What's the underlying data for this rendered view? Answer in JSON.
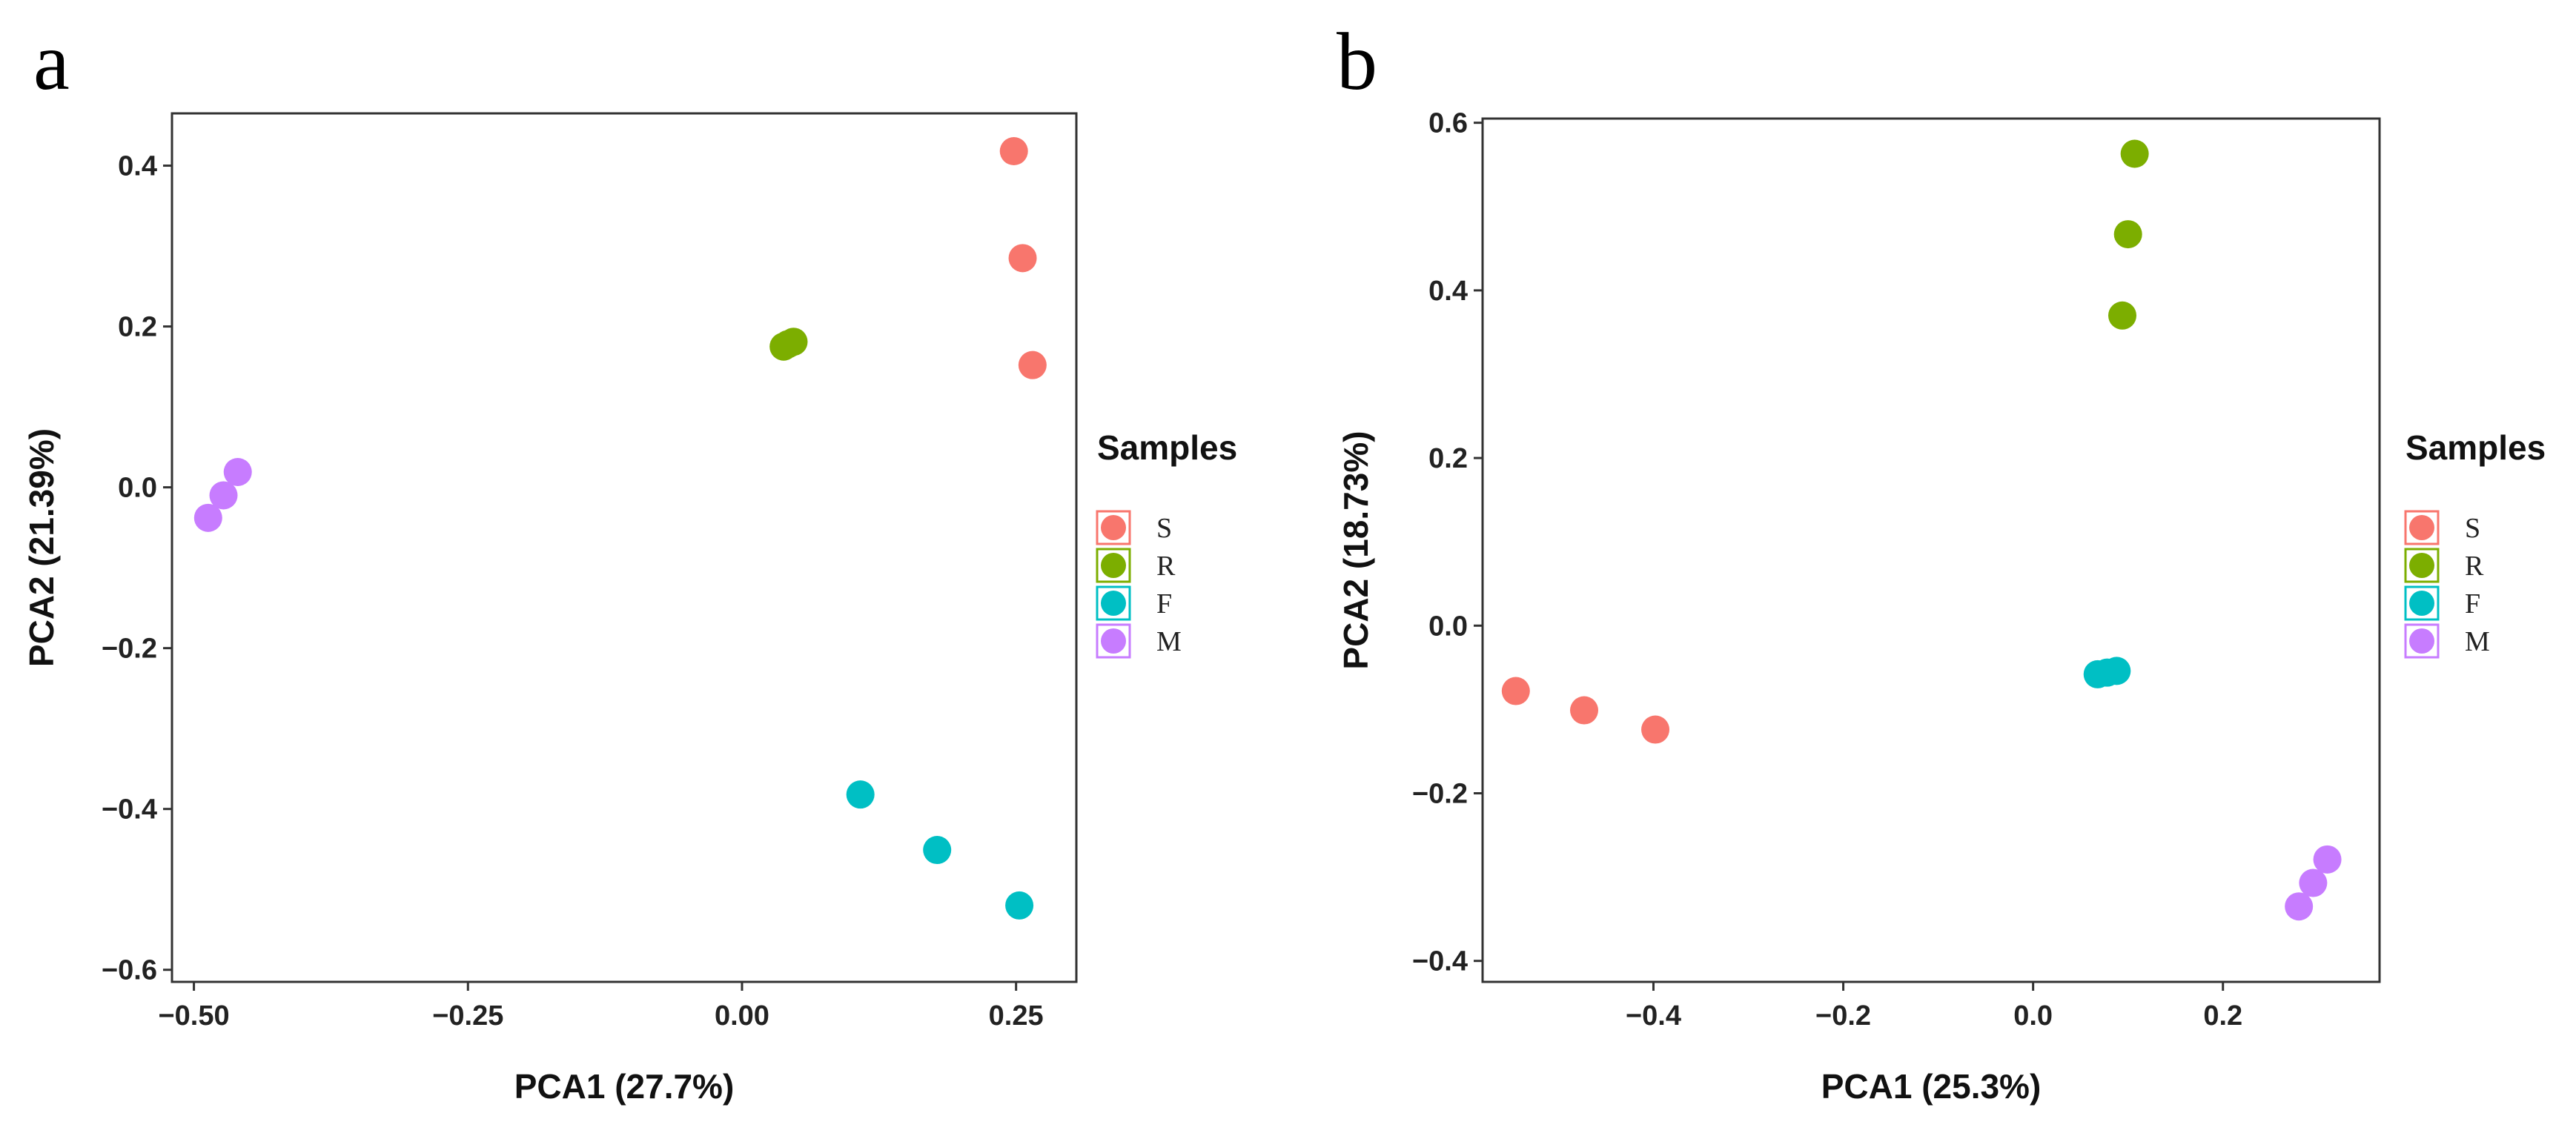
{
  "chart_data": [
    {
      "type": "scatter",
      "panel_label": "a",
      "xlabel": "PCA1 (27.7%)",
      "ylabel": "PCA2 (21.39%)",
      "xlim": [
        -0.52,
        0.305
      ],
      "ylim": [
        -0.615,
        0.465
      ],
      "xticks": [
        -0.5,
        -0.25,
        0.0,
        0.25
      ],
      "xtick_labels": [
        "−0.50",
        "−0.25",
        "0.00",
        "0.25"
      ],
      "yticks": [
        0.4,
        0.2,
        0.0,
        -0.2,
        -0.4,
        -0.6
      ],
      "ytick_labels": [
        "0.4",
        "0.2",
        "0.0",
        "−0.2",
        "−0.4",
        "−0.6"
      ],
      "legend": {
        "title": "Samples",
        "position": "right"
      },
      "series": [
        {
          "name": "S",
          "color": "#F8766D",
          "points": [
            [
              0.248,
              0.418
            ],
            [
              0.256,
              0.285
            ],
            [
              0.265,
              0.152
            ]
          ]
        },
        {
          "name": "R",
          "color": "#7CAE00",
          "points": [
            [
              0.038,
              0.175
            ],
            [
              0.042,
              0.178
            ],
            [
              0.047,
              0.181
            ]
          ]
        },
        {
          "name": "F",
          "color": "#00BFC4",
          "points": [
            [
              0.108,
              -0.382
            ],
            [
              0.178,
              -0.451
            ],
            [
              0.253,
              -0.52
            ]
          ]
        },
        {
          "name": "M",
          "color": "#C77CFF",
          "points": [
            [
              -0.487,
              -0.038
            ],
            [
              -0.473,
              -0.01
            ],
            [
              -0.46,
              0.019
            ]
          ]
        }
      ]
    },
    {
      "type": "scatter",
      "panel_label": "b",
      "xlabel": "PCA1 (25.3%)",
      "ylabel": "PCA2 (18.73%)",
      "xlim": [
        -0.58,
        0.365
      ],
      "ylim": [
        -0.425,
        0.605
      ],
      "xticks": [
        -0.4,
        -0.2,
        0.0,
        0.2
      ],
      "xtick_labels": [
        "−0.4",
        "−0.2",
        "0.0",
        "0.2"
      ],
      "yticks": [
        0.6,
        0.4,
        0.2,
        0.0,
        -0.2,
        -0.4
      ],
      "ytick_labels": [
        "0.6",
        "0.4",
        "0.2",
        "0.0",
        "−0.2",
        "−0.4"
      ],
      "legend": {
        "title": "Samples",
        "position": "right"
      },
      "series": [
        {
          "name": "S",
          "color": "#F8766D",
          "points": [
            [
              -0.545,
              -0.078
            ],
            [
              -0.473,
              -0.101
            ],
            [
              -0.398,
              -0.124
            ]
          ]
        },
        {
          "name": "R",
          "color": "#7CAE00",
          "points": [
            [
              0.094,
              0.37
            ],
            [
              0.1,
              0.467
            ],
            [
              0.107,
              0.563
            ]
          ]
        },
        {
          "name": "F",
          "color": "#00BFC4",
          "points": [
            [
              0.068,
              -0.058
            ],
            [
              0.078,
              -0.056
            ],
            [
              0.088,
              -0.054
            ]
          ]
        },
        {
          "name": "M",
          "color": "#C77CFF",
          "points": [
            [
              0.28,
              -0.335
            ],
            [
              0.295,
              -0.307
            ],
            [
              0.31,
              -0.279
            ]
          ]
        }
      ]
    }
  ]
}
